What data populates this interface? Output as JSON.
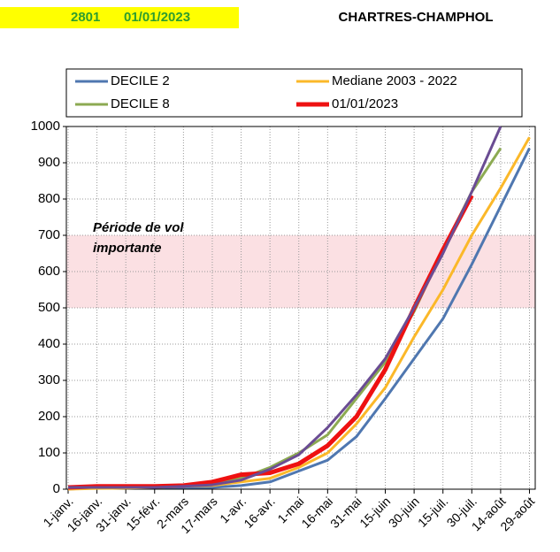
{
  "header": {
    "code": "2801",
    "date": "01/01/2023",
    "station": "CHARTRES-CHAMPHOL"
  },
  "chart_data": {
    "type": "line",
    "xlim": [
      0,
      243
    ],
    "xticks": [
      {
        "value": 0,
        "label": "1-janv."
      },
      {
        "value": 15,
        "label": "16-janv."
      },
      {
        "value": 30,
        "label": "31-janv."
      },
      {
        "value": 45,
        "label": "15-févr."
      },
      {
        "value": 60,
        "label": "2-mars"
      },
      {
        "value": 75,
        "label": "17-mars"
      },
      {
        "value": 90,
        "label": "1-avr."
      },
      {
        "value": 105,
        "label": "16-avr."
      },
      {
        "value": 120,
        "label": "1-mai"
      },
      {
        "value": 135,
        "label": "16-mai"
      },
      {
        "value": 150,
        "label": "31-mai"
      },
      {
        "value": 165,
        "label": "15-juin"
      },
      {
        "value": 180,
        "label": "30-juin"
      },
      {
        "value": 195,
        "label": "15-juil."
      },
      {
        "value": 210,
        "label": "30-juil."
      },
      {
        "value": 225,
        "label": "14-août"
      },
      {
        "value": 240,
        "label": "29-août"
      }
    ],
    "ylim": [
      0,
      1000
    ],
    "yticks": [
      0,
      100,
      200,
      300,
      400,
      500,
      600,
      700,
      800,
      900,
      1000
    ],
    "grid": true,
    "band": {
      "from": 500,
      "to": 700,
      "color": "#fbe0e3",
      "label": [
        "Période de vol",
        "importante"
      ]
    },
    "x": [
      0,
      15,
      30,
      45,
      60,
      75,
      90,
      105,
      120,
      135,
      150,
      165,
      180,
      195,
      210,
      225,
      240
    ],
    "series": [
      {
        "name": "DECILE 2",
        "color": "#4f77b0",
        "width": 3,
        "values": [
          0,
          5,
          5,
          5,
          5,
          5,
          10,
          20,
          50,
          80,
          145,
          250,
          360,
          470,
          620,
          780,
          940
        ]
      },
      {
        "name": "Mediane 2003 - 2022",
        "color": "#fbb829",
        "width": 3,
        "values": [
          0,
          2,
          3,
          5,
          8,
          10,
          20,
          30,
          60,
          100,
          180,
          280,
          420,
          550,
          700,
          830,
          970
        ]
      },
      {
        "name": "DECILE 8",
        "color": "#8caa52",
        "width": 3,
        "values": [
          5,
          5,
          5,
          5,
          8,
          15,
          30,
          60,
          100,
          150,
          250,
          350,
          490,
          660,
          820,
          940,
          null
        ]
      },
      {
        "name": "01/01/2023",
        "color": "#ee1111",
        "width": 5,
        "values": [
          5,
          8,
          8,
          8,
          10,
          20,
          40,
          45,
          70,
          120,
          200,
          330,
          500,
          660,
          810,
          null,
          null
        ]
      },
      {
        "color": "#6a4c93",
        "width": 3,
        "values": [
          5,
          5,
          5,
          5,
          8,
          12,
          25,
          55,
          95,
          170,
          260,
          360,
          500,
          650,
          820,
          1000,
          null
        ]
      }
    ]
  }
}
